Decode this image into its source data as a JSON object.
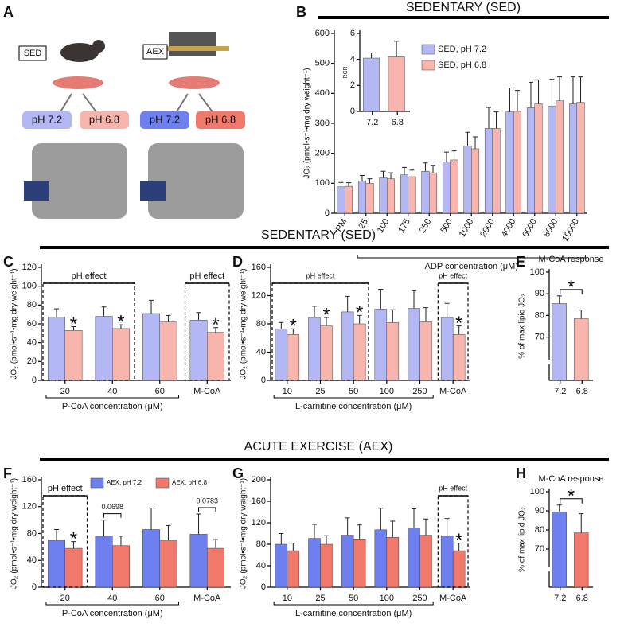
{
  "figure": {
    "panel_letters": [
      "A",
      "B",
      "C",
      "D",
      "E",
      "F",
      "G",
      "H"
    ],
    "headers": [
      "SEDENTARY (SED)",
      "SEDENTARY (SED)",
      "ACUTE EXERCISE (AEX)"
    ],
    "panel_a": {
      "sed": "SED",
      "aex": "AEX",
      "ph_labels": [
        "pH 7.2",
        "pH 6.8",
        "pH 7.2",
        "pH 6.8"
      ]
    }
  },
  "chart_data": [
    {
      "type": "bar",
      "ylabel": "JO₂ (pmol•s⁻¹•mg dry weight⁻¹)",
      "xlabel": "ADP concentration (μM)",
      "xlabel_span": [
        1,
        11
      ],
      "categories": [
        "PM",
        "25",
        "100",
        "175",
        "250",
        "500",
        "1000",
        "2000",
        "4000",
        "6000",
        "8000",
        "10000"
      ],
      "series": [
        {
          "name": "SED, pH 7.2",
          "color": "#b3b8f5",
          "values": [
            88,
            108,
            118,
            128,
            140,
            172,
            225,
            283,
            338,
            352,
            357,
            365
          ],
          "errors": [
            15,
            18,
            22,
            25,
            28,
            32,
            45,
            70,
            80,
            85,
            90,
            90
          ]
        },
        {
          "name": "SED, pH 6.8",
          "color": "#f8b5ad",
          "values": [
            90,
            100,
            115,
            122,
            135,
            178,
            215,
            283,
            340,
            365,
            375,
            370
          ],
          "errors": [
            12,
            15,
            20,
            22,
            25,
            30,
            40,
            55,
            70,
            80,
            80,
            85
          ]
        }
      ],
      "ylim": [
        0,
        600
      ],
      "yticks": [
        0,
        100,
        200,
        300,
        400,
        500,
        600
      ],
      "legend": "upper-left"
    },
    {
      "type": "bar",
      "ylabel": "RCR",
      "categories": [
        "7.2",
        "6.8"
      ],
      "series": [
        {
          "color": "#b3b8f5",
          "values": [
            4.1,
            4.2
          ],
          "errors": [
            0.4,
            1.2
          ],
          "position": 0
        },
        {
          "color": "#f8b5ad",
          "values": [
            null,
            null
          ],
          "errors": [
            null,
            null
          ]
        }
      ],
      "colors": [
        "#b3b8f5",
        "#f8b5ad"
      ],
      "ylim": [
        0,
        6
      ],
      "yticks": [
        0,
        2,
        4,
        6
      ]
    },
    {
      "type": "bar",
      "ylabel": "JO₂ (pmol•s⁻¹•mg dry weight⁻¹)",
      "xlabel": "P-CoA concentration (μM)",
      "xlabel_span": [
        0,
        2
      ],
      "categories": [
        "20",
        "40",
        "60",
        "M-CoA"
      ],
      "series": [
        {
          "color": "#b3b8f5",
          "values": [
            67,
            68,
            71,
            64
          ],
          "errors": [
            9,
            10,
            14,
            8
          ]
        },
        {
          "color": "#f8b5ad",
          "values": [
            53,
            55,
            62,
            51
          ],
          "errors": [
            4,
            4,
            7,
            5
          ]
        }
      ],
      "ylim": [
        0,
        120
      ],
      "yticks": [
        0,
        20,
        40,
        60,
        80,
        100,
        120
      ],
      "effect_boxes": [
        {
          "label": "pH effect",
          "from": 0,
          "to": 1
        },
        {
          "label": "pH effect",
          "from": 3,
          "to": 3
        }
      ],
      "stars": [
        {
          "label": "*",
          "index": 0
        },
        {
          "label": "*",
          "index": 1
        },
        {
          "label": "*",
          "index": 3
        }
      ]
    },
    {
      "type": "bar",
      "ylabel": "JO₂ (pmol•s⁻¹•mg dry weight⁻¹)",
      "xlabel": "L-carnitine concentration (μM)",
      "xlabel_span": [
        0,
        4
      ],
      "categories": [
        "10",
        "25",
        "50",
        "100",
        "250",
        "M-CoA"
      ],
      "series": [
        {
          "color": "#b3b8f5",
          "values": [
            73,
            89,
            97,
            101,
            102,
            89
          ],
          "errors": [
            9,
            16,
            22,
            28,
            25,
            20
          ]
        },
        {
          "color": "#f8b5ad",
          "values": [
            65,
            77,
            80,
            82,
            83,
            65
          ],
          "errors": [
            8,
            12,
            12,
            18,
            20,
            12
          ]
        }
      ],
      "ylim": [
        0,
        160
      ],
      "yticks": [
        0,
        40,
        80,
        120,
        160
      ],
      "effect_boxes": [
        {
          "label": "pH effect",
          "from": 0,
          "to": 2
        },
        {
          "label": "pH effect",
          "from": 5,
          "to": 5
        }
      ],
      "stars": [
        {
          "label": "*",
          "index": 0
        },
        {
          "label": "*",
          "index": 1
        },
        {
          "label": "*",
          "index": 2
        },
        {
          "label": "*",
          "index": 5
        }
      ]
    },
    {
      "type": "bar",
      "title": "M-CoA response",
      "ylabel": "% of max lipid JO₂",
      "categories": [
        "7.2",
        "6.8"
      ],
      "series": [
        {
          "values": [
            85.5,
            78.5
          ],
          "errors": [
            3.5,
            4
          ]
        }
      ],
      "colors": [
        "#b3b8f5",
        "#f8b5ad"
      ],
      "ylim": [
        50,
        100
      ],
      "yticks": [
        70,
        80,
        90,
        100
      ],
      "axis_break": true,
      "brackets": [
        {
          "label": "*",
          "from": 0,
          "to": 1
        }
      ]
    },
    {
      "type": "bar",
      "ylabel": "JO₂ (pmol•s⁻¹•mg dry weight⁻¹)",
      "xlabel": "P-CoA concentration (μM)",
      "xlabel_span": [
        0,
        2
      ],
      "categories": [
        "20",
        "40",
        "60",
        "M-CoA"
      ],
      "series": [
        {
          "name": "AEX, pH 7.2",
          "color": "#6e7ff0",
          "values": [
            70,
            76,
            86,
            79
          ],
          "errors": [
            16,
            24,
            32,
            30
          ]
        },
        {
          "name": "AEX, pH 6.8",
          "color": "#f0796c",
          "values": [
            58,
            62,
            70,
            58
          ],
          "errors": [
            10,
            14,
            22,
            13
          ]
        }
      ],
      "ylim": [
        0,
        160
      ],
      "yticks": [
        0,
        40,
        80,
        120,
        160
      ],
      "legend": "top",
      "effect_boxes": [
        {
          "label": "pH effect",
          "from": 0,
          "to": 0
        }
      ],
      "stars": [
        {
          "label": "*",
          "index": 0
        }
      ],
      "p_values": [
        {
          "label": "0.0698",
          "index": 1
        },
        {
          "label": "0.0783",
          "index": 3
        }
      ]
    },
    {
      "type": "bar",
      "ylabel": "JO₂ (pmol•s⁻¹•mg dry weight⁻¹)",
      "xlabel": "L-carnitine concentration (μM)",
      "xlabel_span": [
        0,
        4
      ],
      "categories": [
        "10",
        "25",
        "50",
        "100",
        "250",
        "M-CoA"
      ],
      "series": [
        {
          "color": "#6e7ff0",
          "values": [
            80,
            91,
            97,
            107,
            110,
            96
          ],
          "errors": [
            20,
            26,
            32,
            40,
            36,
            32
          ]
        },
        {
          "color": "#f0796c",
          "values": [
            68,
            80,
            90,
            93,
            97,
            68
          ],
          "errors": [
            14,
            16,
            26,
            30,
            30,
            14
          ]
        }
      ],
      "ylim": [
        0,
        200
      ],
      "yticks": [
        0,
        40,
        80,
        120,
        160,
        200
      ],
      "effect_boxes": [
        {
          "label": "pH effect",
          "from": 5,
          "to": 5
        }
      ],
      "stars": [
        {
          "label": "*",
          "index": 5
        }
      ]
    },
    {
      "type": "bar",
      "title": "M-CoA response",
      "ylabel": "% of max lipid JO₂",
      "categories": [
        "7.2",
        "6.8"
      ],
      "series": [
        {
          "values": [
            89.5,
            78.5
          ],
          "errors": [
            3.5,
            10
          ]
        }
      ],
      "colors": [
        "#6e7ff0",
        "#f0796c"
      ],
      "ylim": [
        50,
        100
      ],
      "yticks": [
        70,
        80,
        90,
        100
      ],
      "axis_break": true,
      "brackets": [
        {
          "label": "*",
          "from": 0,
          "to": 1
        }
      ]
    }
  ]
}
